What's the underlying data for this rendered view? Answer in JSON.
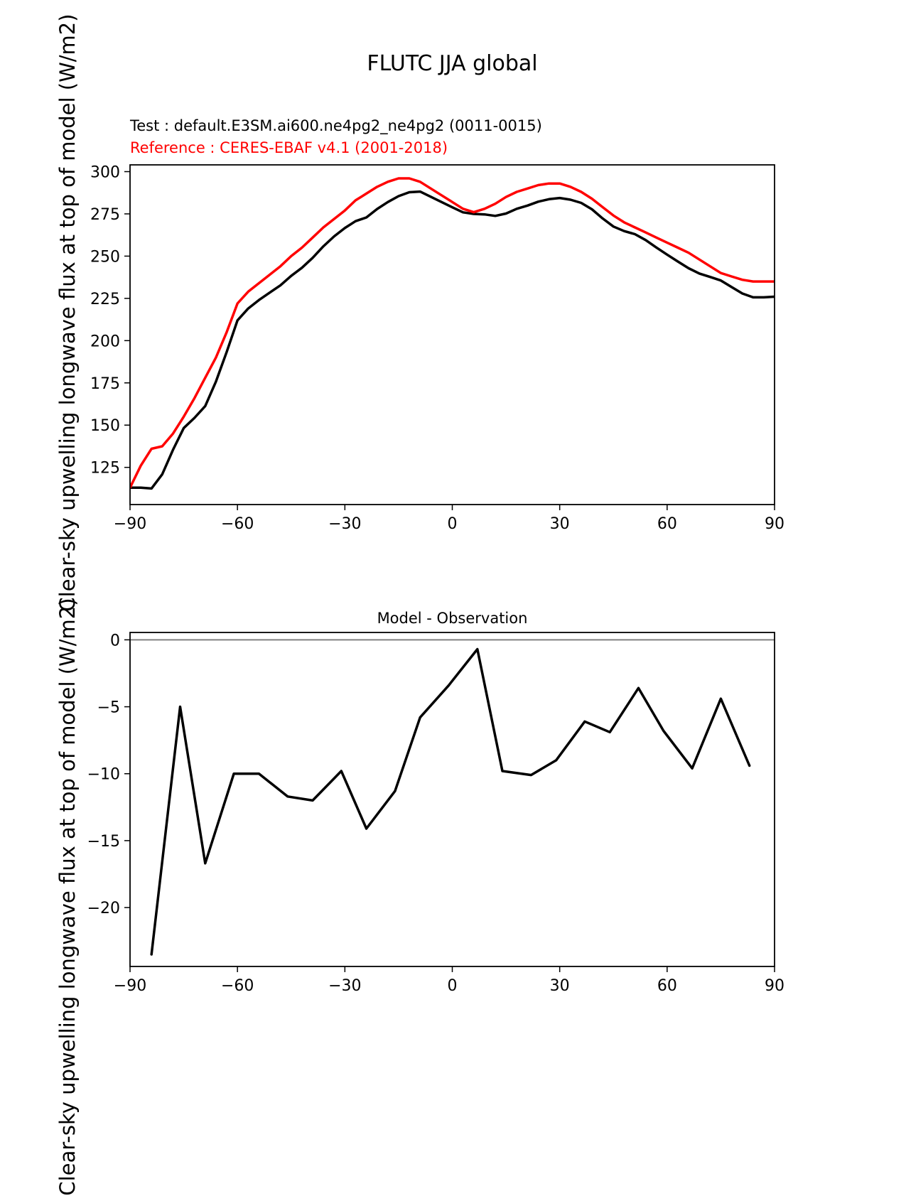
{
  "figure": {
    "title": "FLUTC JJA global",
    "legend_test": "Test : default.E3SM.ai600.ne4pg2_ne4pg2 (0011-0015)",
    "legend_reference": "Reference : CERES-EBAF v4.1 (2001-2018)",
    "diff_title": "Model - Observation",
    "ylabel": "Clear-sky upwelling longwave flux at top of model (W/m2)",
    "colors": {
      "test_line": "#000000",
      "reference_line": "#ff0000",
      "zero_line": "#808080",
      "frame": "#000000"
    }
  },
  "chart_data": [
    {
      "type": "line",
      "title": "FLUTC JJA global",
      "xlabel": "",
      "ylabel": "Clear-sky upwelling longwave flux at top of model (W/m2)",
      "xlim": [
        -90,
        90
      ],
      "ylim": [
        103,
        304
      ],
      "xticks": [
        -90,
        -60,
        -30,
        0,
        30,
        60,
        90
      ],
      "xtick_labels": [
        "−90",
        "−60",
        "−30",
        "0",
        "30",
        "60",
        "90"
      ],
      "yticks": [
        125,
        150,
        175,
        200,
        225,
        250,
        275,
        300
      ],
      "ytick_labels": [
        "125",
        "150",
        "175",
        "200",
        "225",
        "250",
        "275",
        "300"
      ],
      "grid": false,
      "legend_position": "above-left",
      "series": [
        {
          "name": "Test : default.E3SM.ai600.ne4pg2_ne4pg2 (0011-0015)",
          "color": "#000000",
          "x": [
            -90,
            -87,
            -84,
            -81,
            -78,
            -75,
            -72,
            -69,
            -66,
            -63,
            -60,
            -57,
            -54,
            -51,
            -48,
            -45,
            -42,
            -39,
            -36,
            -33,
            -30,
            -27,
            -24,
            -21,
            -18,
            -15,
            -12,
            -9,
            -6,
            -3,
            0,
            3,
            6,
            9,
            12,
            15,
            18,
            21,
            24,
            27,
            30,
            33,
            36,
            39,
            42,
            45,
            48,
            51,
            54,
            57,
            60,
            63,
            66,
            69,
            72,
            75,
            78,
            81,
            84,
            87,
            90
          ],
          "values": [
            113,
            113,
            112.5,
            120.9,
            135.4,
            148.3,
            154.3,
            161.3,
            175.8,
            193.3,
            212,
            219,
            224,
            228.4,
            232.7,
            238.3,
            243.1,
            249,
            255.8,
            261.7,
            266.6,
            270.7,
            272.9,
            277.9,
            282,
            285.5,
            287.8,
            288.2,
            285.1,
            282,
            278.9,
            275.9,
            275,
            274.7,
            273.8,
            275.2,
            278,
            279.9,
            282.2,
            283.7,
            284.4,
            283.4,
            281.5,
            277.7,
            272.3,
            267.5,
            264.8,
            263,
            259.5,
            255.1,
            250.9,
            246.8,
            242.8,
            239.7,
            237.7,
            235.6,
            231.7,
            227.9,
            225.6,
            225.6,
            226
          ]
        },
        {
          "name": "Reference : CERES-EBAF v4.1 (2001-2018)",
          "color": "#ff0000",
          "x": [
            -90,
            -87,
            -84,
            -81,
            -78,
            -75,
            -72,
            -69,
            -66,
            -63,
            -60,
            -57,
            -54,
            -51,
            -48,
            -45,
            -42,
            -39,
            -36,
            -33,
            -30,
            -27,
            -24,
            -21,
            -18,
            -15,
            -12,
            -9,
            -6,
            -3,
            0,
            3,
            6,
            9,
            12,
            15,
            18,
            21,
            24,
            27,
            30,
            33,
            36,
            39,
            42,
            45,
            48,
            51,
            54,
            57,
            60,
            63,
            66,
            69,
            72,
            75,
            78,
            81,
            84,
            87,
            90
          ],
          "values": [
            113,
            126,
            136,
            137.5,
            145,
            155,
            166,
            178,
            190,
            205,
            222,
            229,
            234,
            239,
            244,
            250,
            255,
            261,
            267,
            272,
            277,
            283,
            287,
            291,
            294,
            296,
            296,
            294,
            290,
            286,
            282,
            278,
            276,
            278,
            281,
            285,
            288,
            290,
            292,
            293,
            293,
            291,
            288,
            284,
            279,
            274,
            270,
            267,
            264,
            261,
            258,
            255,
            252,
            248,
            244,
            240,
            238,
            236,
            235,
            235,
            235
          ]
        }
      ]
    },
    {
      "type": "line",
      "title": "Model - Observation",
      "xlabel": "",
      "ylabel": "Clear-sky upwelling longwave flux at top of model (W/m2)",
      "xlim": [
        -90,
        90
      ],
      "ylim": [
        -24.4,
        0.55
      ],
      "xticks": [
        -90,
        -60,
        -30,
        0,
        30,
        60,
        90
      ],
      "xtick_labels": [
        "−90",
        "−60",
        "−30",
        "0",
        "30",
        "60",
        "90"
      ],
      "yticks": [
        0,
        -5,
        -10,
        -15,
        -20
      ],
      "ytick_labels": [
        "0",
        "−5",
        "−10",
        "−15",
        "−20"
      ],
      "grid": false,
      "hlines": [
        {
          "y": 0,
          "color": "#808080"
        }
      ],
      "series": [
        {
          "name": "Model - Observation",
          "color": "#000000",
          "x": [
            -84,
            -76,
            -69,
            -61,
            -54,
            -46,
            -39,
            -31,
            -24,
            -16,
            -9,
            -1,
            7,
            14,
            22,
            29,
            37,
            44,
            52,
            59,
            67,
            75,
            83
          ],
          "values": [
            -23.5,
            -5.0,
            -16.7,
            -10.0,
            -10.0,
            -11.7,
            -12.0,
            -9.8,
            -14.1,
            -11.3,
            -5.8,
            -3.4,
            -0.7,
            -9.8,
            -10.1,
            -9.0,
            -6.1,
            -6.9,
            -3.6,
            -6.8,
            -9.6,
            -4.4,
            -9.4
          ]
        }
      ]
    }
  ]
}
